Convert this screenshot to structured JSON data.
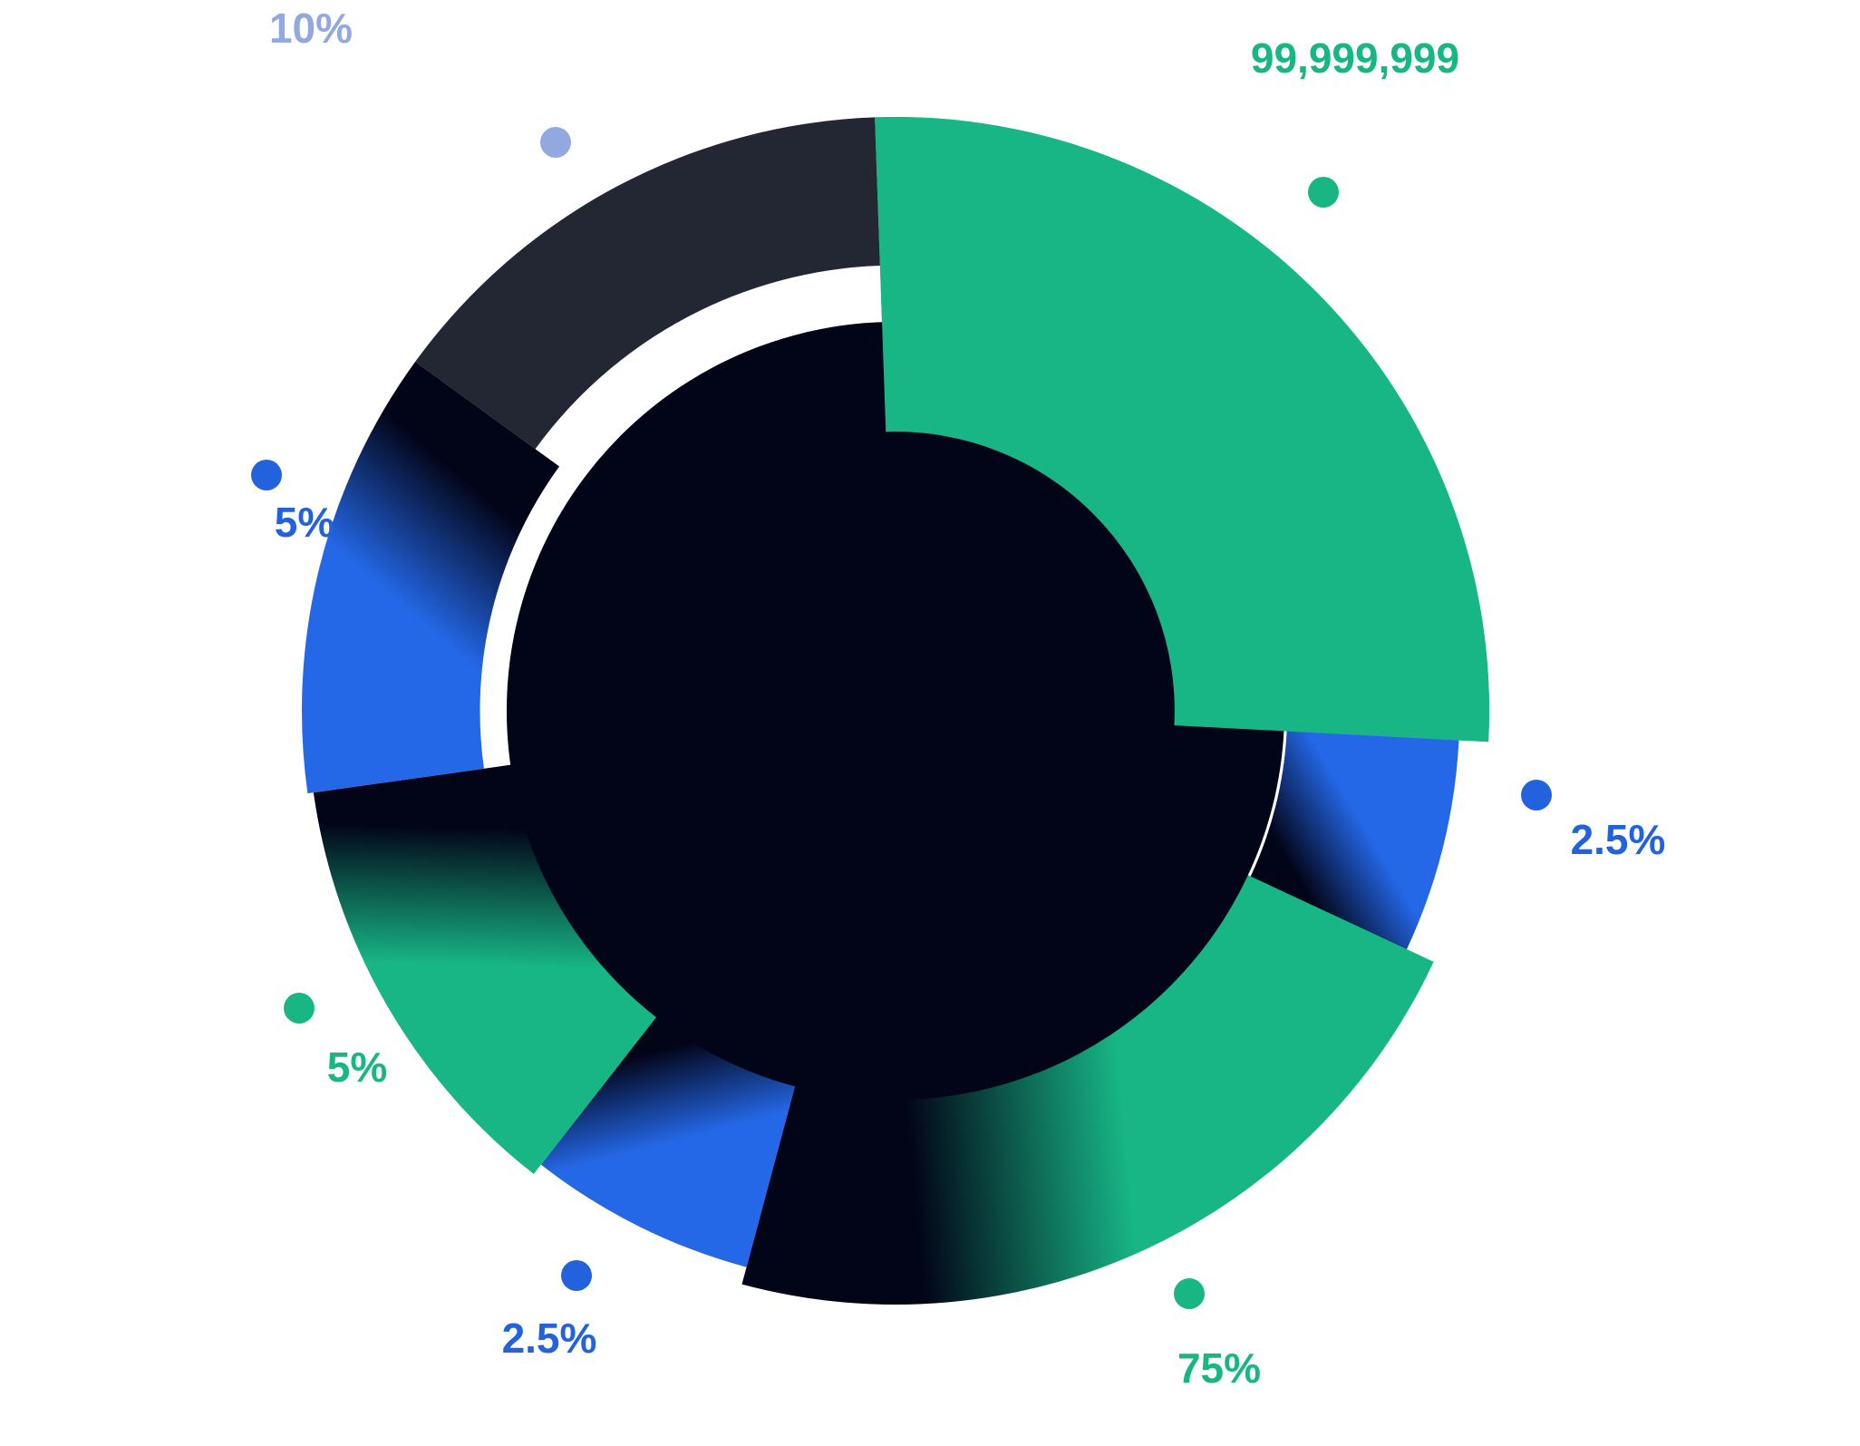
{
  "chart_data": {
    "type": "pie",
    "variant": "radial-donut",
    "title": "",
    "legend": "none",
    "segments": [
      {
        "label": "99,999,999",
        "label_color": "#18b683",
        "fill": "#17b684",
        "shading": "solid",
        "start_deg": -2,
        "end_deg": 93,
        "radius_outer": 1.0,
        "radius_inner": 0.47
      },
      {
        "label": "2.5%",
        "label_color": "#2262dc",
        "fill": "#2468e8",
        "shading": "gradient",
        "start_deg": 93,
        "end_deg": 115,
        "radius_outer": 0.95,
        "radius_inner": 0.66
      },
      {
        "label": "75%",
        "label_color": "#18b683",
        "fill": "#17b684",
        "shading": "gradient",
        "start_deg": 115,
        "end_deg": 195,
        "radius_outer": 1.0,
        "radius_inner": 0.64
      },
      {
        "label": "2.5%",
        "label_color": "#2262dc",
        "fill": "#2468e8",
        "shading": "gradient",
        "start_deg": 195,
        "end_deg": 218,
        "radius_outer": 0.97,
        "radius_inner": 0.62
      },
      {
        "label": "5%",
        "label_color": "#18b683",
        "fill": "#17b684",
        "shading": "gradient",
        "start_deg": 218,
        "end_deg": 262,
        "radius_outer": 0.99,
        "radius_inner": 0.63
      },
      {
        "label": "5%",
        "label_color": "#2262dc",
        "fill": "#2468e8",
        "shading": "gradient",
        "start_deg": 262,
        "end_deg": 306,
        "radius_outer": 1.0,
        "radius_inner": 0.7
      },
      {
        "label": "10%",
        "label_color": "#92a9e0",
        "fill": "#222733",
        "shading": "solid",
        "start_deg": 306,
        "end_deg": 358,
        "radius_outer": 1.0,
        "radius_inner": 0.75
      }
    ],
    "center_color": "#020417",
    "separator_ring_color": "#ffffff"
  }
}
